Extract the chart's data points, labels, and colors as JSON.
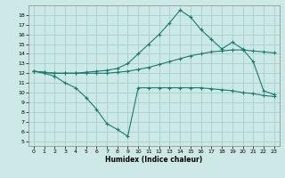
{
  "title": "",
  "xlabel": "Humidex (Indice chaleur)",
  "bg_color": "#cce9e7",
  "grid_color": "#aad4d0",
  "line_color": "#1a7a6e",
  "series1_x": [
    0,
    1,
    2,
    3,
    4,
    5,
    6,
    7,
    8,
    9,
    10,
    11,
    12,
    13,
    14,
    15,
    16,
    17,
    18,
    19,
    20,
    21,
    22,
    23
  ],
  "series1_y": [
    12.2,
    12.0,
    11.7,
    11.0,
    10.5,
    9.5,
    8.3,
    6.8,
    6.2,
    5.5,
    10.5,
    10.5,
    10.5,
    10.5,
    10.5,
    10.5,
    10.5,
    10.4,
    10.3,
    10.2,
    10.0,
    9.9,
    9.7,
    9.6
  ],
  "series2_x": [
    0,
    1,
    2,
    3,
    4,
    5,
    6,
    7,
    8,
    9,
    10,
    11,
    12,
    13,
    14,
    15,
    16,
    17,
    18,
    19,
    20,
    21,
    22,
    23
  ],
  "series2_y": [
    12.2,
    12.1,
    12.0,
    12.0,
    12.0,
    12.0,
    12.0,
    12.0,
    12.1,
    12.2,
    12.4,
    12.6,
    12.9,
    13.2,
    13.5,
    13.8,
    14.0,
    14.2,
    14.3,
    14.4,
    14.4,
    14.3,
    14.2,
    14.1
  ],
  "series3_x": [
    0,
    1,
    2,
    3,
    4,
    5,
    6,
    7,
    8,
    9,
    10,
    11,
    12,
    13,
    14,
    15,
    16,
    17,
    18,
    19,
    20,
    21,
    22,
    23
  ],
  "series3_y": [
    12.2,
    12.1,
    12.0,
    12.0,
    12.0,
    12.1,
    12.2,
    12.3,
    12.5,
    13.0,
    14.0,
    15.0,
    16.0,
    17.2,
    18.5,
    17.8,
    16.5,
    15.5,
    14.5,
    15.2,
    14.5,
    13.2,
    10.2,
    9.8
  ],
  "ylim": [
    4.5,
    19.0
  ],
  "xlim": [
    -0.5,
    23.5
  ],
  "yticks": [
    5,
    6,
    7,
    8,
    9,
    10,
    11,
    12,
    13,
    14,
    15,
    16,
    17,
    18
  ],
  "xticks": [
    0,
    1,
    2,
    3,
    4,
    5,
    6,
    7,
    8,
    9,
    10,
    11,
    12,
    13,
    14,
    15,
    16,
    17,
    18,
    19,
    20,
    21,
    22,
    23
  ],
  "figsize": [
    3.2,
    2.0
  ],
  "dpi": 100
}
